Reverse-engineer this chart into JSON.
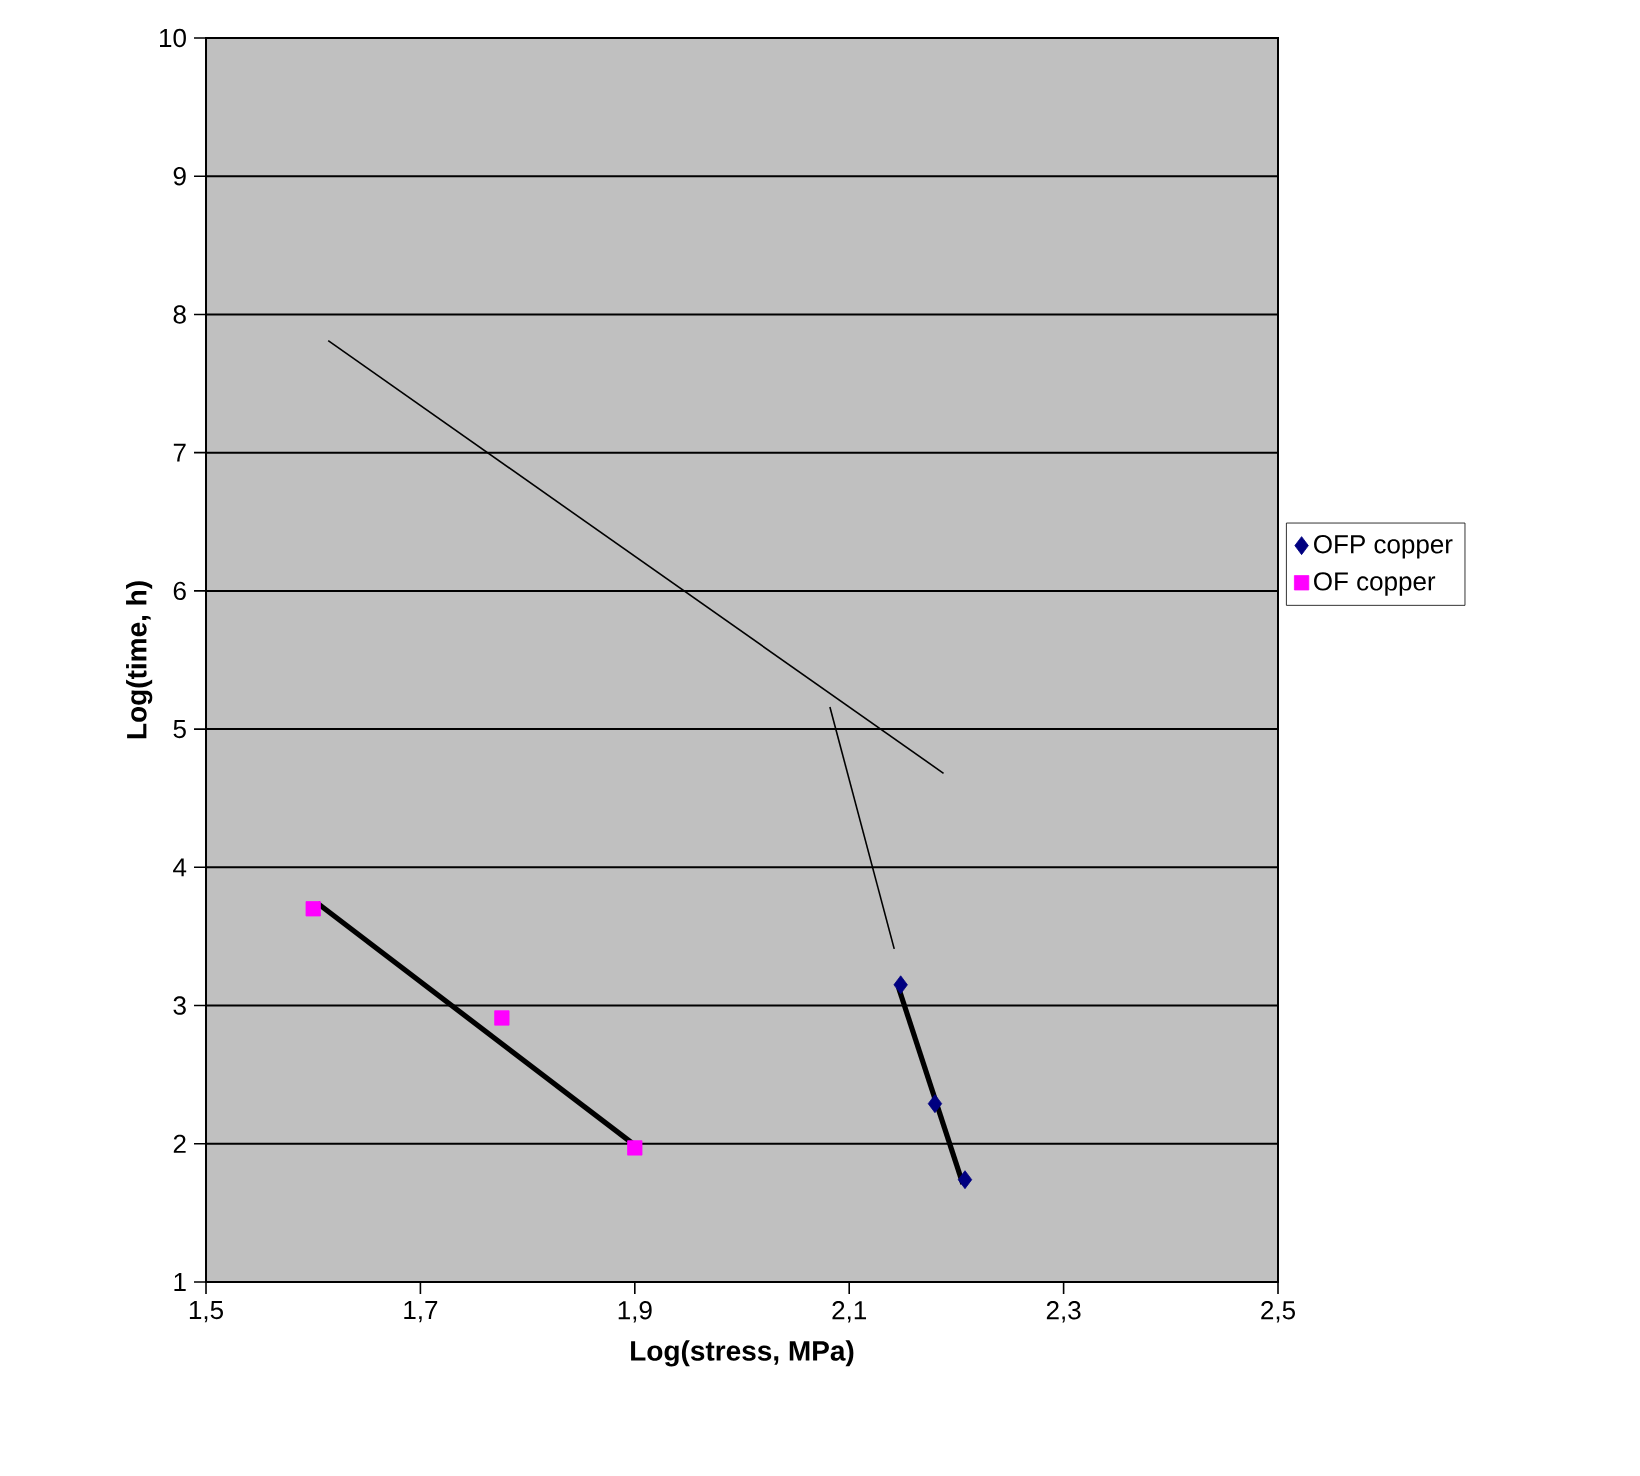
{
  "chart_data": {
    "type": "scatter",
    "xlabel": "Log(stress, MPa)",
    "ylabel": "Log(time, h)",
    "xlim": [
      1.5,
      2.5
    ],
    "xticks": [
      {
        "value": 1.5,
        "label": "1,5"
      },
      {
        "value": 1.7,
        "label": "1,7"
      },
      {
        "value": 1.9,
        "label": "1,9"
      },
      {
        "value": 2.1,
        "label": "2,1"
      },
      {
        "value": 2.3,
        "label": "2,3"
      },
      {
        "value": 2.5,
        "label": "2,5"
      }
    ],
    "ylim": [
      1,
      10
    ],
    "yticks": [
      1,
      2,
      3,
      4,
      5,
      6,
      7,
      8,
      9,
      10
    ],
    "grid": "y",
    "legend": "right",
    "series": [
      {
        "name": "OFP copper",
        "marker": "diamond",
        "color": "#000080",
        "x": [
          2.148,
          2.18,
          2.208
        ],
        "values": [
          3.15,
          2.29,
          1.74
        ]
      },
      {
        "name": "OF copper",
        "marker": "square",
        "color": "#ff00ff",
        "x": [
          1.6,
          1.776,
          1.9
        ],
        "values": [
          3.7,
          2.91,
          1.97
        ]
      },
      {
        "type": "line",
        "marker": "none",
        "color": "#000000",
        "x": [
          1.604,
          1.9
        ],
        "values": [
          3.74,
          1.99
        ]
      },
      {
        "type": "line",
        "marker": "none",
        "color": "#000000",
        "x": [
          2.146,
          2.206
        ],
        "values": [
          3.13,
          1.71
        ]
      },
      {
        "type": "line",
        "marker": "none",
        "color": "#000000",
        "x": [
          1.614,
          2.188
        ],
        "values": [
          7.81,
          4.68
        ]
      },
      {
        "type": "line",
        "marker": "none",
        "color": "#000000",
        "x": [
          2.082,
          2.142
        ],
        "values": [
          5.16,
          3.41
        ]
      }
    ]
  }
}
